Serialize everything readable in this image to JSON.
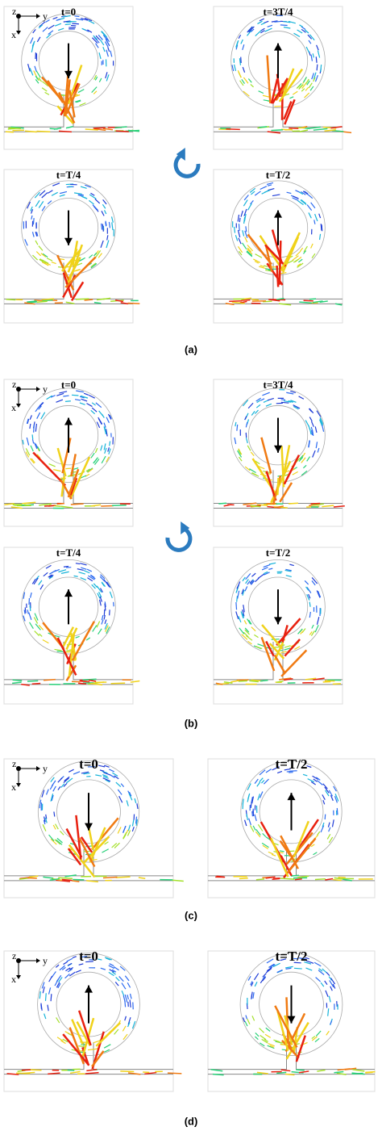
{
  "panels": [
    {
      "caption": "(a)",
      "axes": {
        "z": "z",
        "y": "y",
        "x": "x"
      },
      "frames": [
        {
          "title": "t=0"
        },
        {
          "title": "t=3T/4"
        },
        {
          "title": "t=T/4"
        },
        {
          "title": "t=T/2"
        }
      ]
    },
    {
      "caption": "(b)",
      "axes": {
        "z": "z",
        "y": "y",
        "x": "x"
      },
      "frames": [
        {
          "title": "t=0"
        },
        {
          "title": "t=3T/4"
        },
        {
          "title": "t=T/4"
        },
        {
          "title": "t=T/2"
        }
      ]
    },
    {
      "caption": "(c)",
      "axes": {
        "z": "z",
        "y": "y",
        "x": "x"
      },
      "frames": [
        {
          "title": "t=0"
        },
        {
          "title": "t=T/2"
        }
      ]
    },
    {
      "caption": "(d)",
      "axes": {
        "z": "z",
        "y": "y",
        "x": "x"
      },
      "frames": [
        {
          "title": "t=0"
        },
        {
          "title": "t=T/2"
        }
      ]
    }
  ]
}
